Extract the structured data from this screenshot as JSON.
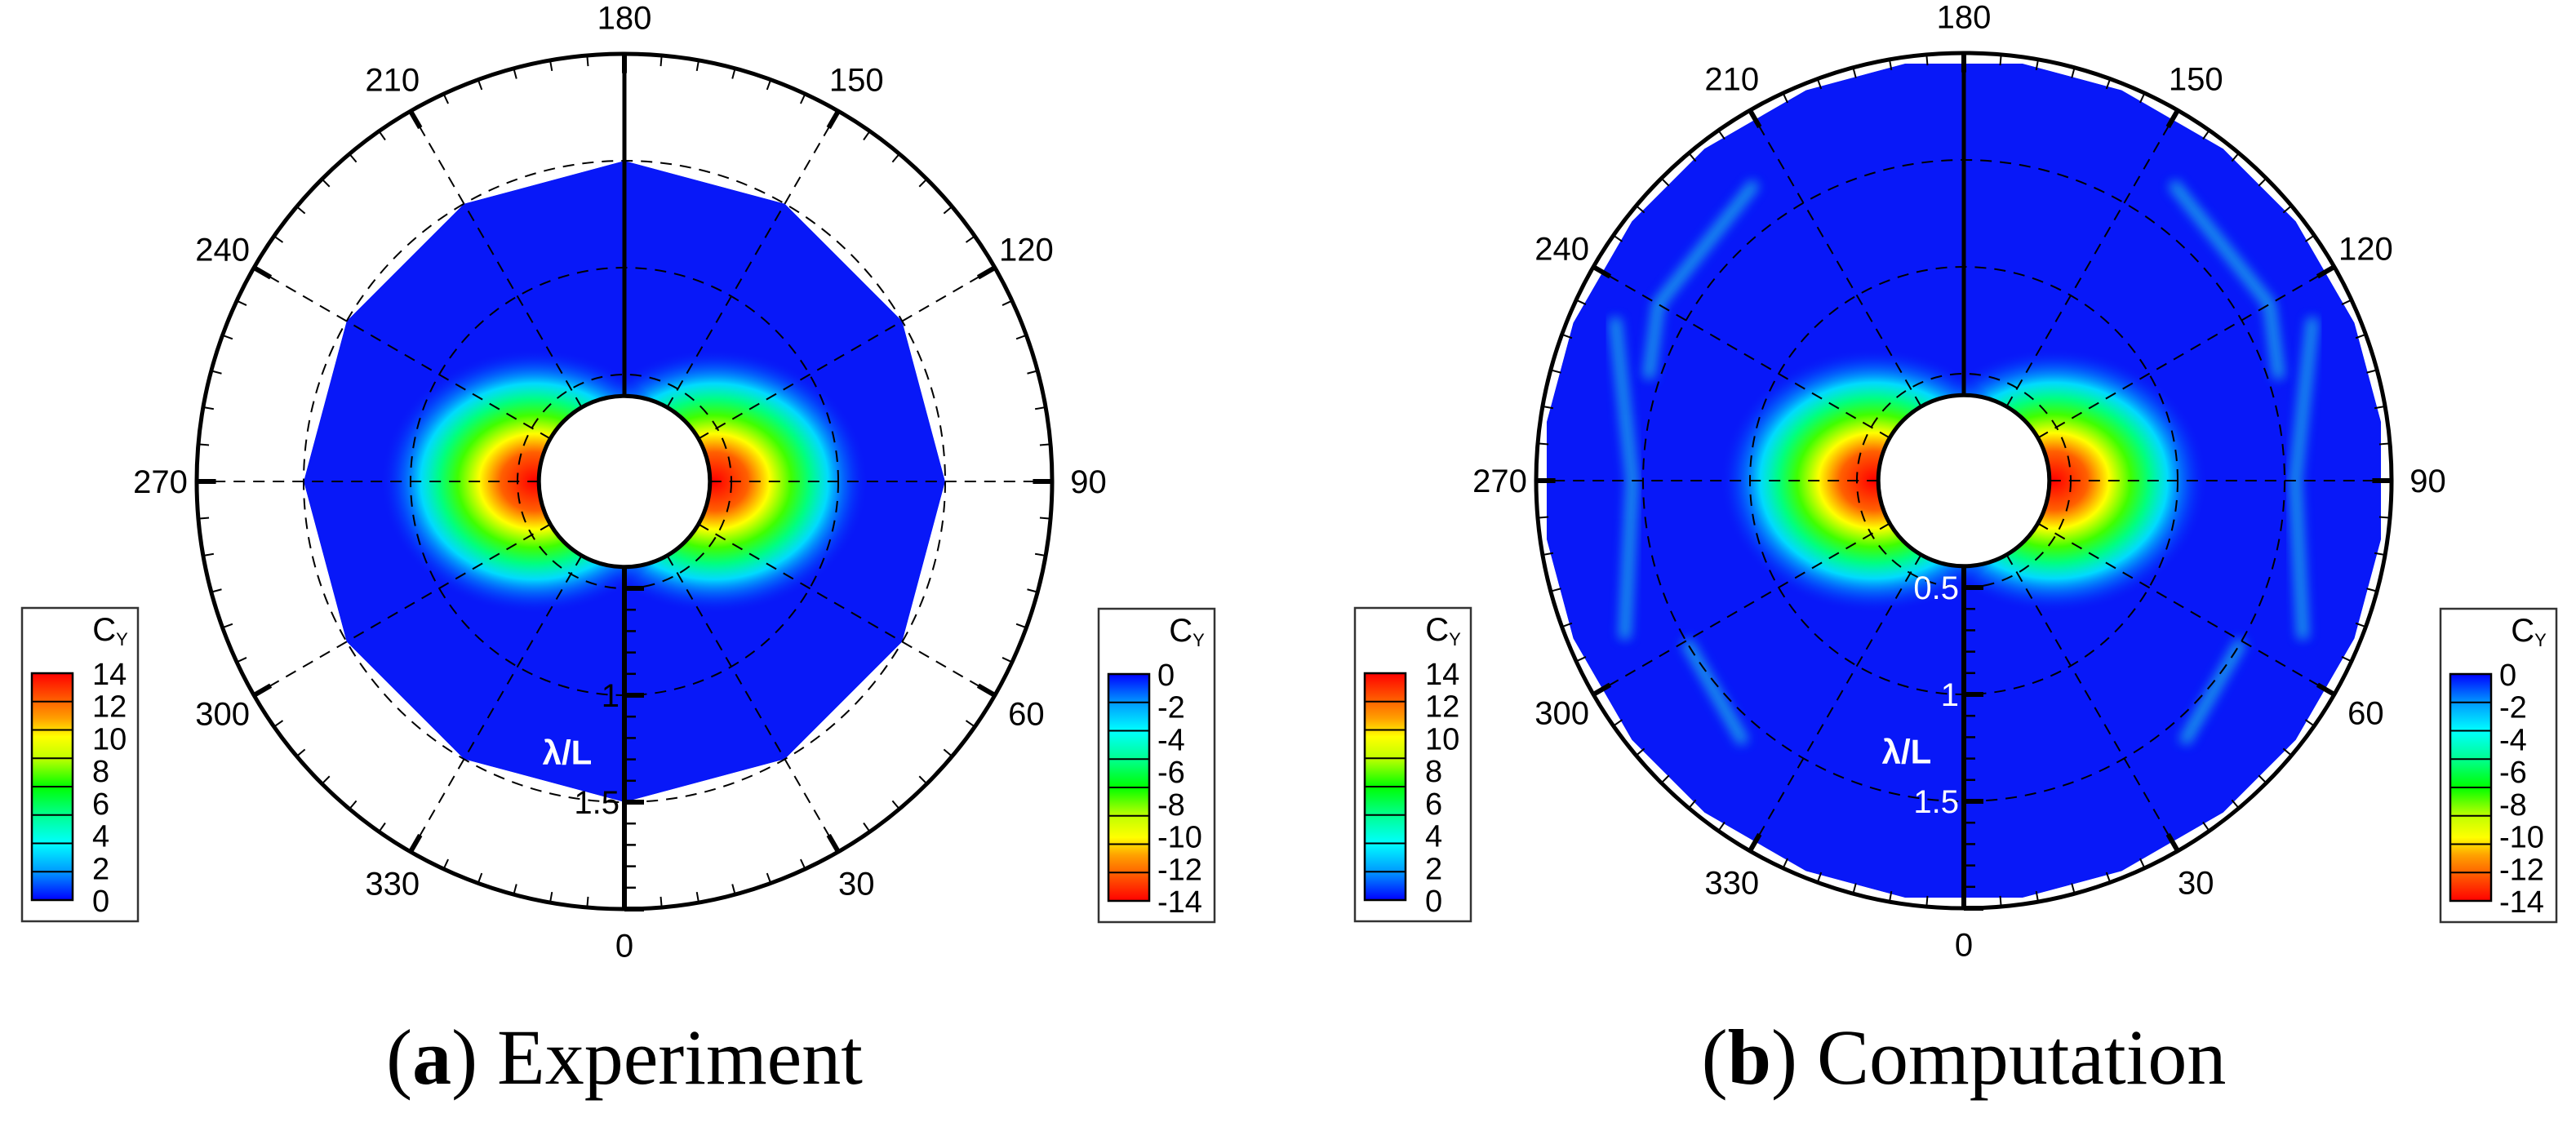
{
  "chart_data": [
    {
      "type": "heatmap",
      "projection": "polar",
      "panel_label": "a",
      "title": "Experiment",
      "angle_labels": [
        "0",
        "30",
        "60",
        "90",
        "120",
        "150",
        "180",
        "210",
        "240",
        "270",
        "300",
        "330"
      ],
      "angle_ticks": [
        0,
        30,
        60,
        90,
        120,
        150,
        180,
        210,
        240,
        270,
        300,
        330
      ],
      "radial_axis_label": "λ/L",
      "radial_tick_labels": [
        "1",
        "1.5"
      ],
      "radial_ticks": [
        1,
        1.5
      ],
      "radial_range": [
        0,
        2
      ],
      "hole_radius": 0.4,
      "data_outer_radius": 1.5,
      "grid": true,
      "peak_angles": [
        90,
        270
      ],
      "colorbars": [
        {
          "title": "C",
          "subscript": "Y",
          "ticks": [
            "14",
            "12",
            "10",
            "8",
            "6",
            "4",
            "2",
            "0"
          ],
          "range": [
            0,
            14
          ],
          "placement": "left"
        },
        {
          "title": "C",
          "subscript": "Y",
          "ticks": [
            "0",
            "-2",
            "-4",
            "-6",
            "-8",
            "-10",
            "-12",
            "-14"
          ],
          "range": [
            -14,
            0
          ],
          "placement": "right"
        }
      ]
    },
    {
      "type": "heatmap",
      "projection": "polar",
      "panel_label": "b",
      "title": "Computation",
      "angle_labels": [
        "0",
        "30",
        "60",
        "90",
        "120",
        "150",
        "180",
        "210",
        "240",
        "270",
        "300",
        "330"
      ],
      "angle_ticks": [
        0,
        30,
        60,
        90,
        120,
        150,
        180,
        210,
        240,
        270,
        300,
        330
      ],
      "radial_axis_label": "λ/L",
      "radial_tick_labels": [
        "0.5",
        "1",
        "1.5"
      ],
      "radial_ticks": [
        0.5,
        1,
        1.5
      ],
      "radial_range": [
        0,
        2
      ],
      "hole_radius": 0.4,
      "data_outer_radius": 2,
      "grid": true,
      "peak_angles": [
        90,
        270
      ],
      "colorbars": [
        {
          "title": "C",
          "subscript": "Y",
          "ticks": [
            "14",
            "12",
            "10",
            "8",
            "6",
            "4",
            "2",
            "0"
          ],
          "range": [
            0,
            14
          ],
          "placement": "left"
        },
        {
          "title": "C",
          "subscript": "Y",
          "ticks": [
            "0",
            "-2",
            "-4",
            "-6",
            "-8",
            "-10",
            "-12",
            "-14"
          ],
          "range": [
            -14,
            0
          ],
          "placement": "right"
        }
      ]
    }
  ],
  "colors": {
    "low": "#0000ff",
    "mid_low": "#00ffff",
    "mid": "#00ff00",
    "mid_high": "#ffff00",
    "high": "#ff0000",
    "field": "#0818f8"
  }
}
